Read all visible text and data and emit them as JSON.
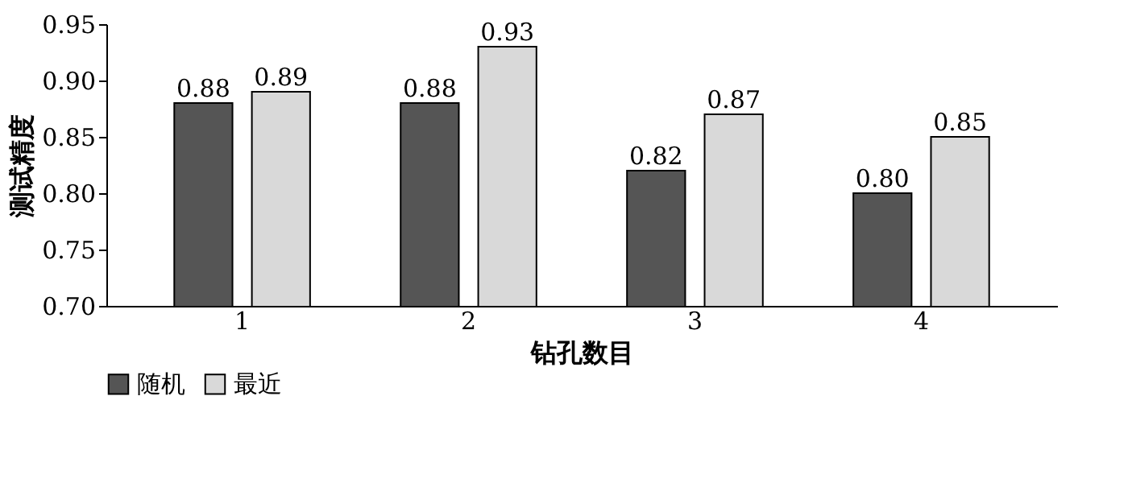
{
  "chart_data": {
    "type": "bar",
    "xlabel": "钻孔数目",
    "ylabel": "测试精度",
    "categories": [
      "1",
      "2",
      "3",
      "4"
    ],
    "series": [
      {
        "name": "随机",
        "color": "#555555",
        "values": [
          0.88,
          0.88,
          0.82,
          0.8
        ],
        "value_labels": [
          "0.88",
          "0.88",
          "0.82",
          "0.80"
        ]
      },
      {
        "name": "最近",
        "color": "#d9d9d9",
        "values": [
          0.89,
          0.93,
          0.87,
          0.85
        ],
        "value_labels": [
          "0.89",
          "0.93",
          "0.87",
          "0.85"
        ]
      }
    ],
    "ylim": [
      0.7,
      0.95
    ],
    "yticks": [
      {
        "value": 0.7,
        "label": "0.70"
      },
      0.75,
      {
        "value": 0.8,
        "label": "0.80"
      },
      0.85,
      {
        "value": 0.9,
        "label": "0.90"
      },
      0.95
    ],
    "grid": false,
    "legend": "bottom",
    "data_labels": true
  }
}
